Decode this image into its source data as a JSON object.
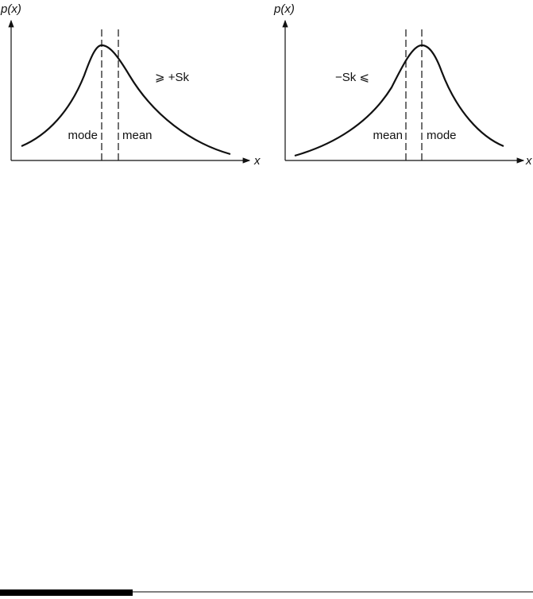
{
  "panels": [
    {
      "y_label": "p(x)",
      "x_label": "x",
      "left_label": "mode",
      "right_label": "mean",
      "annotation": "⩾ +Sk"
    },
    {
      "y_label": "p(x)",
      "x_label": "x",
      "left_label": "mean",
      "right_label": "mode",
      "annotation": "−Sk ⩽"
    }
  ]
}
